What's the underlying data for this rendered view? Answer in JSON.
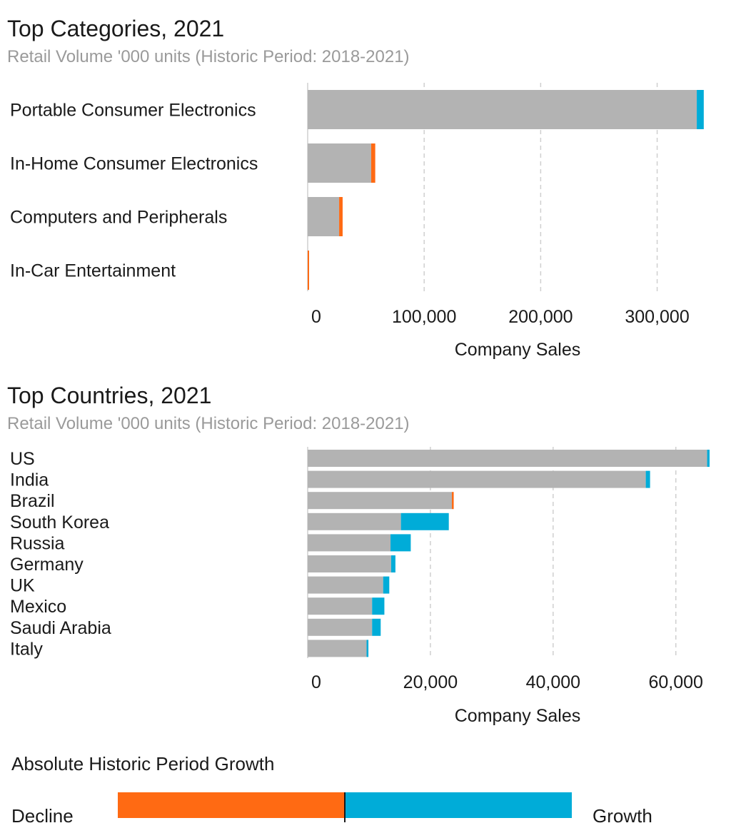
{
  "colors": {
    "base": "#b3b3b3",
    "growth": "#00acd8",
    "decline": "#ff6a13",
    "grid": "#cfcfcf"
  },
  "chart_data": [
    {
      "type": "bar",
      "orientation": "horizontal",
      "title": "Top Categories, 2021",
      "subtitle": "Retail Volume '000 units (Historic Period: 2018-2021)",
      "xlabel": "Company Sales",
      "categories": [
        "Portable Consumer Electronics",
        "In-Home Consumer Electronics",
        "Computers and Peripherals",
        "In-Car Entertainment"
      ],
      "series": [
        {
          "name": "",
          "values": [
            340000,
            58000,
            30000,
            1200
          ]
        }
      ],
      "growth": [
        -6000,
        3500,
        3000,
        1200
      ],
      "xlim": [
        0,
        345000
      ],
      "ticks": [
        0,
        100000,
        200000,
        300000
      ],
      "tick_labels": [
        "0",
        "100,000",
        "200,000",
        "300,000"
      ],
      "grid": true
    },
    {
      "type": "bar",
      "orientation": "horizontal",
      "title": "Top Countries, 2021",
      "subtitle": "Retail Volume '000 units (Historic Period: 2018-2021)",
      "xlabel": "Company Sales",
      "categories": [
        "US",
        "India",
        "Brazil",
        "South Korea",
        "Russia",
        "Germany",
        "UK",
        "Mexico",
        "Saudi Arabia",
        "Italy"
      ],
      "series": [
        {
          "name": "",
          "values": [
            65500,
            55800,
            23800,
            23000,
            16800,
            14300,
            13300,
            12500,
            11900,
            9900
          ]
        }
      ],
      "growth": [
        -400,
        -700,
        300,
        -7800,
        -3300,
        -700,
        -1000,
        -2000,
        -1400,
        -300
      ],
      "xlim": [
        0,
        65500
      ],
      "ticks": [
        0,
        20000,
        40000,
        60000
      ],
      "tick_labels": [
        "0",
        "20,000",
        "40,000",
        "60,000"
      ],
      "grid": true
    }
  ],
  "legend": {
    "title": "Absolute Historic Period Growth",
    "low_label": "Decline",
    "high_label": "Growth"
  }
}
